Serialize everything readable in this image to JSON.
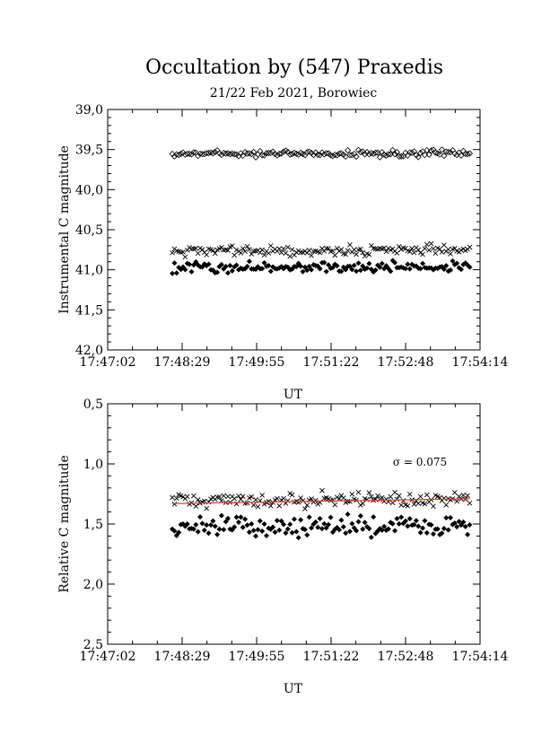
{
  "title": "Occultation by (547) Praxedis",
  "subtitle": "21/22 Feb 2021, Borowiec",
  "chart_data": [
    {
      "type": "scatter",
      "ylabel": "Instrumental C magnitude",
      "xlabel": "UT",
      "xlim_sec": [
        0,
        432
      ],
      "x_tick_labels": [
        "17:47:02",
        "17:48:29",
        "17:49:55",
        "17:51:22",
        "17:52:48",
        "17:54:14"
      ],
      "ylim": [
        39.0,
        42.0
      ],
      "y_inverted": true,
      "y_tick_labels": [
        "39,0",
        "39,5",
        "40,0",
        "40,5",
        "41,0",
        "41,5",
        "42,0"
      ],
      "series": [
        {
          "marker": "open-diamond",
          "x_range_sec": [
            75,
            420
          ],
          "mean": 39.55,
          "spread": 0.035,
          "n": 140
        },
        {
          "marker": "cross",
          "x_range_sec": [
            75,
            420
          ],
          "mean": 40.76,
          "spread": 0.05,
          "n": 140
        },
        {
          "marker": "filled-diamond",
          "x_range_sec": [
            75,
            420
          ],
          "mean": 40.97,
          "spread": 0.055,
          "n": 140
        }
      ]
    },
    {
      "type": "scatter",
      "ylabel": "Relative C magnitude",
      "xlabel": "UT",
      "xlim_sec": [
        0,
        432
      ],
      "x_tick_labels": [
        "17:47:02",
        "17:48:29",
        "17:49:55",
        "17:51:22",
        "17:52:48",
        "17:54:14"
      ],
      "ylim": [
        0.5,
        2.5
      ],
      "y_inverted": true,
      "y_tick_labels": [
        "0,5",
        "1,0",
        "1,5",
        "2,0",
        "2,5"
      ],
      "annotation": "σ = 0.075",
      "fit_line": {
        "x": [
          75,
          420
        ],
        "y": [
          1.33,
          1.29
        ],
        "color": "#e8382a"
      },
      "series": [
        {
          "marker": "cross",
          "x_range_sec": [
            75,
            420
          ],
          "mean": 1.3,
          "spread": 0.05,
          "n": 140
        },
        {
          "marker": "filled-diamond",
          "x_range_sec": [
            75,
            420
          ],
          "mean": 1.52,
          "spread": 0.07,
          "n": 140
        }
      ]
    }
  ]
}
